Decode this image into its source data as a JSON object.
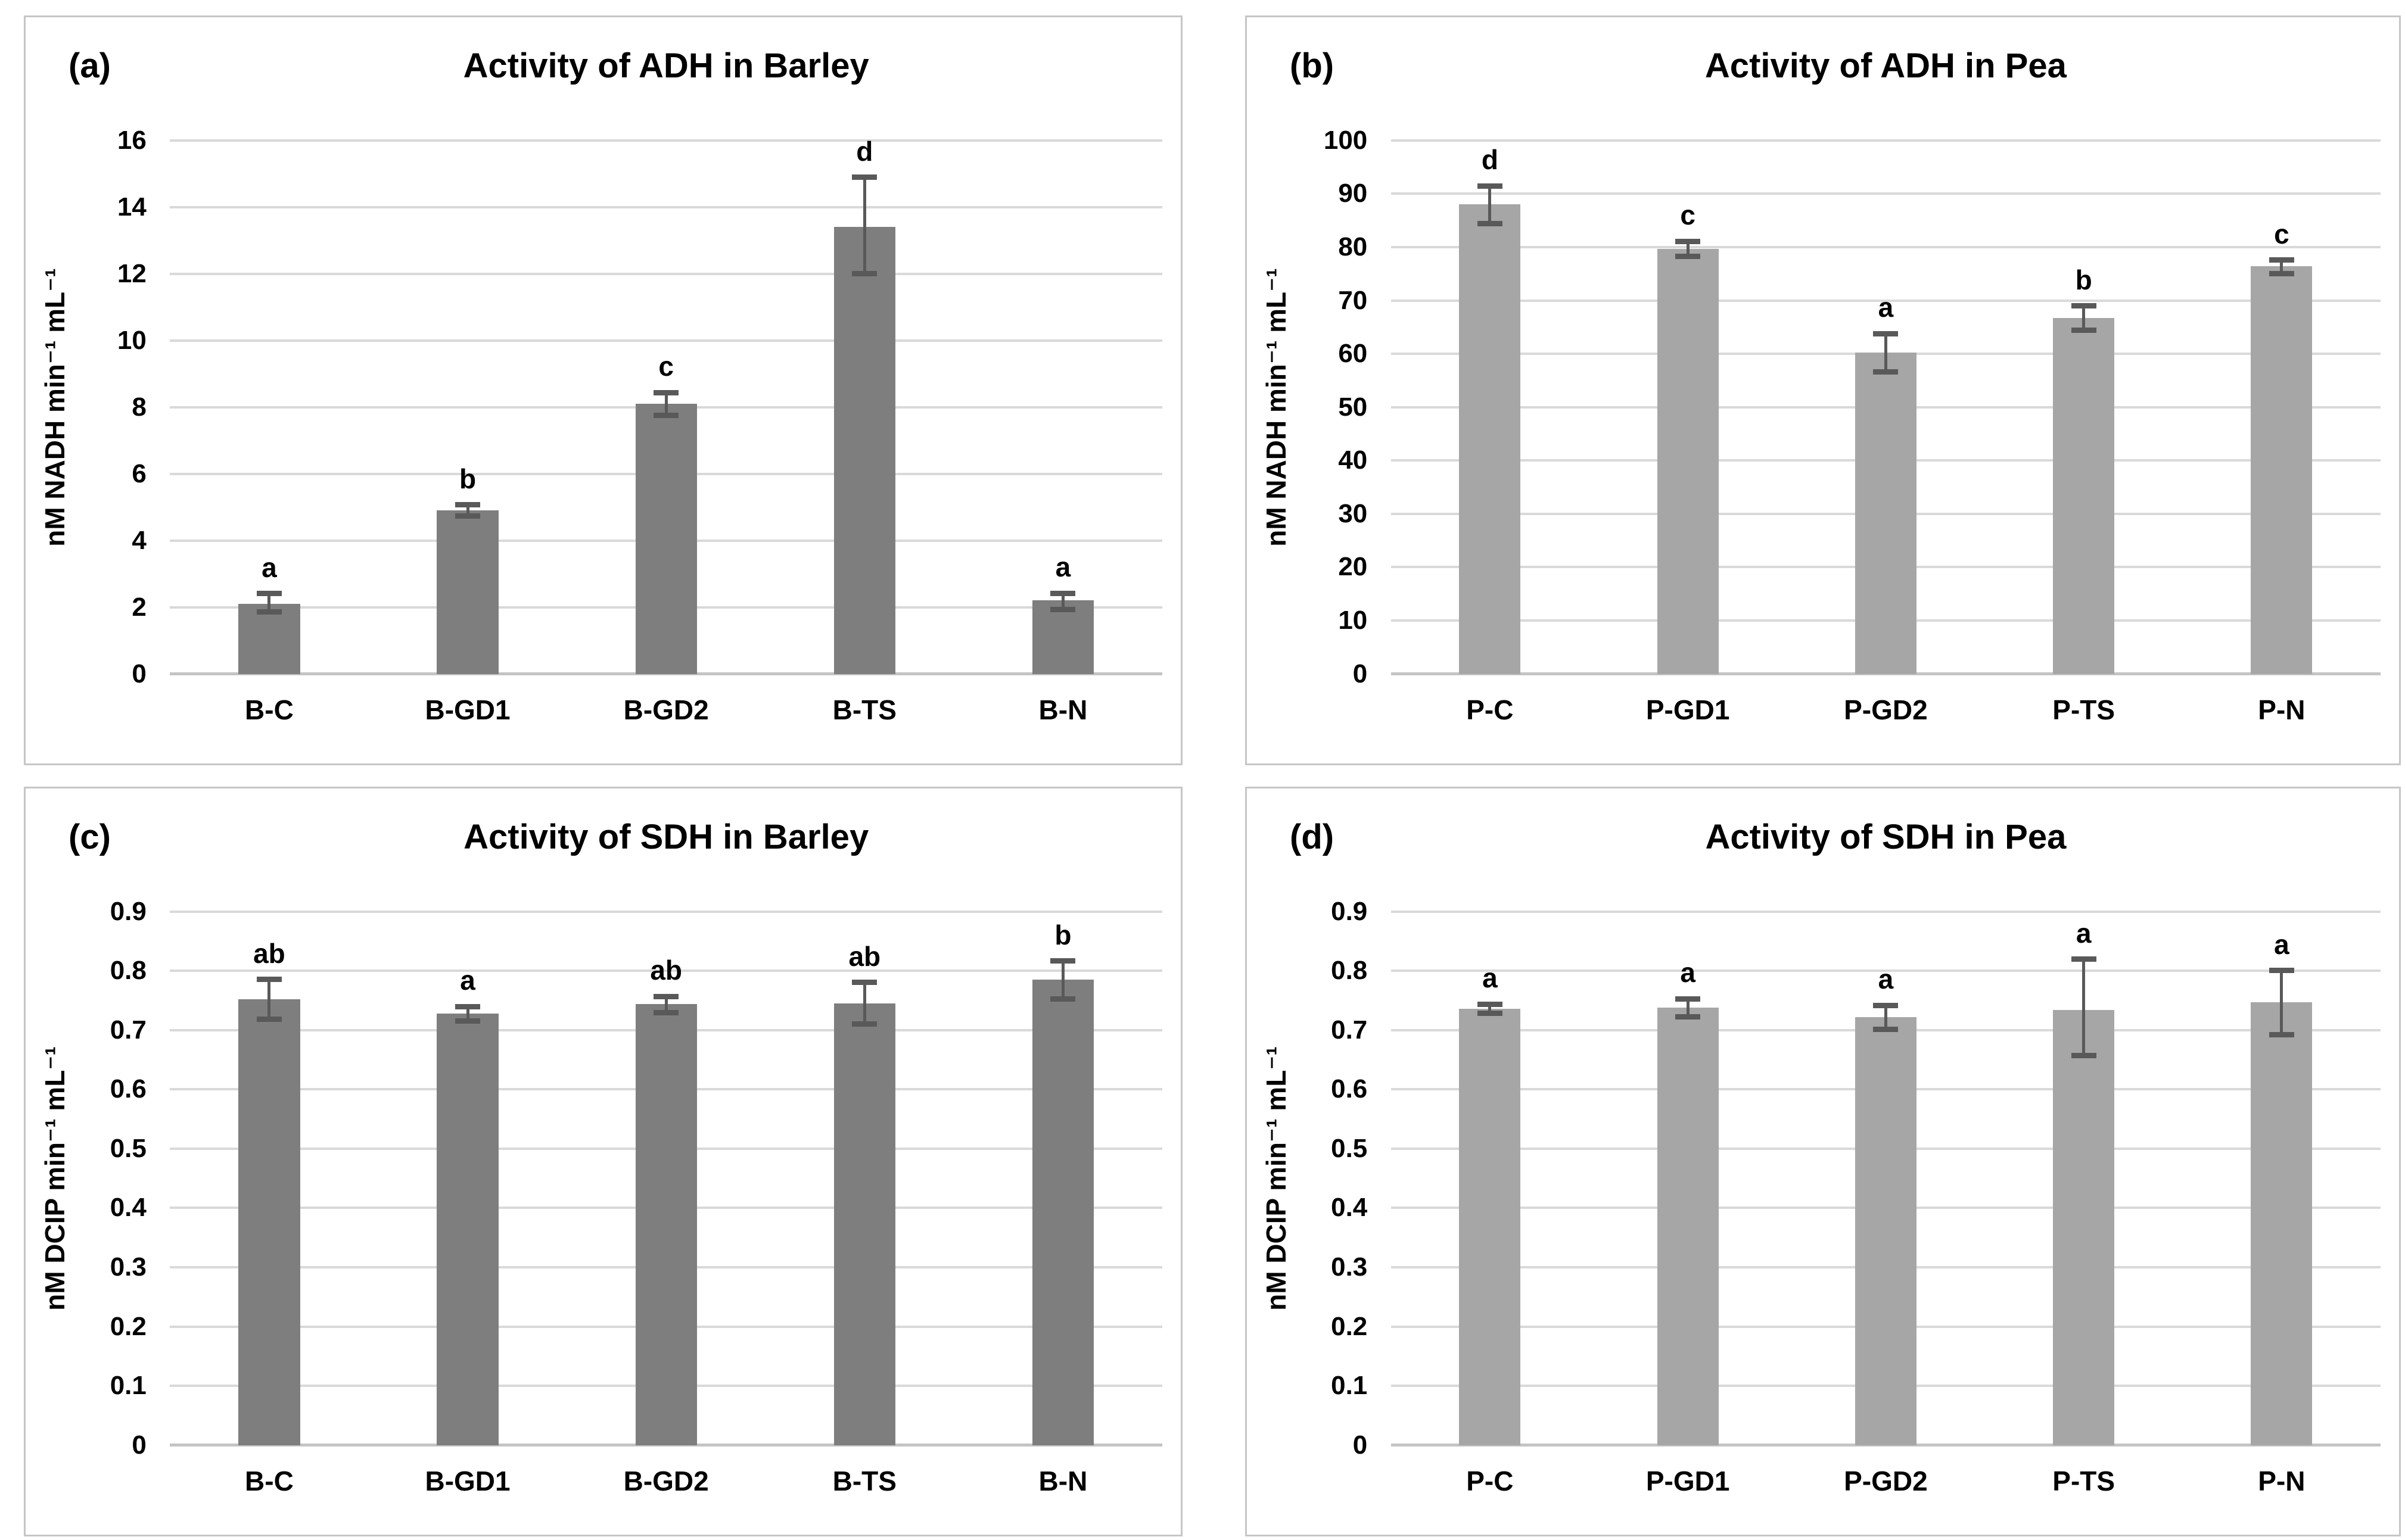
{
  "figure": {
    "background": "#ffffff",
    "panel_border_color": "#c6c6c6"
  },
  "colors": {
    "barley_bar": "#7e7e7e",
    "pea_bar": "#a6a6a6",
    "error_bar": "#595959",
    "gridline": "#d9d9d9",
    "axis_line": "#c4c4c4",
    "text": "#000000"
  },
  "chart_data": [
    {
      "type": "bar",
      "label": "(a)",
      "title": "Activity of ADH in Barley",
      "ylabel": "nM NADH min⁻¹ mL⁻¹",
      "xlabel": "",
      "categories": [
        "B-C",
        "B-GD1",
        "B-GD2",
        "B-TS",
        "B-N"
      ],
      "values": [
        2.1,
        4.9,
        8.1,
        13.4,
        2.2
      ],
      "error_low": [
        1.85,
        4.72,
        7.75,
        12.0,
        1.93
      ],
      "error_high": [
        2.42,
        5.08,
        8.45,
        14.9,
        2.43
      ],
      "letters": [
        "a",
        "b",
        "c",
        "d",
        "a"
      ],
      "ylim": [
        0,
        16
      ],
      "ystep": 2,
      "tick_decimals": 0,
      "bar_color": "#7e7e7e",
      "grid": true,
      "legend": "none"
    },
    {
      "type": "bar",
      "label": "(b)",
      "title": "Activity of ADH in Pea",
      "ylabel": "nM NADH min⁻¹ mL⁻¹",
      "xlabel": "",
      "categories": [
        "P-C",
        "P-GD1",
        "P-GD2",
        "P-TS",
        "P-N"
      ],
      "values": [
        88,
        79.7,
        60.2,
        66.7,
        76.4
      ],
      "error_low": [
        84.3,
        78.2,
        56.5,
        64.4,
        75.0
      ],
      "error_high": [
        91.5,
        81.1,
        63.8,
        69.0,
        77.6
      ],
      "letters": [
        "d",
        "c",
        "a",
        "b",
        "c"
      ],
      "ylim": [
        0,
        100
      ],
      "ystep": 10,
      "tick_decimals": 0,
      "bar_color": "#a6a6a6",
      "grid": true,
      "legend": "none"
    },
    {
      "type": "bar",
      "label": "(c)",
      "title": "Activity of SDH in Barley",
      "ylabel": "nM DCIP min⁻¹ mL⁻¹",
      "xlabel": "",
      "categories": [
        "B-C",
        "B-GD1",
        "B-GD2",
        "B-TS",
        "B-N"
      ],
      "values": [
        0.752,
        0.728,
        0.744,
        0.745,
        0.785
      ],
      "error_low": [
        0.718,
        0.715,
        0.729,
        0.71,
        0.752
      ],
      "error_high": [
        0.786,
        0.74,
        0.757,
        0.781,
        0.817
      ],
      "letters": [
        "ab",
        "a",
        "ab",
        "ab",
        "b"
      ],
      "ylim": [
        0,
        0.9
      ],
      "ystep": 0.1,
      "tick_decimals": 1,
      "bar_color": "#7e7e7e",
      "grid": true,
      "legend": "none"
    },
    {
      "type": "bar",
      "label": "(d)",
      "title": "Activity of SDH in Pea",
      "ylabel": "nM DCIP min⁻¹ mL⁻¹",
      "xlabel": "",
      "categories": [
        "P-C",
        "P-GD1",
        "P-GD2",
        "P-TS",
        "P-N"
      ],
      "values": [
        0.736,
        0.738,
        0.722,
        0.734,
        0.747
      ],
      "error_low": [
        0.728,
        0.722,
        0.701,
        0.657,
        0.692
      ],
      "error_high": [
        0.744,
        0.753,
        0.742,
        0.82,
        0.801
      ],
      "letters": [
        "a",
        "a",
        "a",
        "a",
        "a"
      ],
      "ylim": [
        0,
        0.9
      ],
      "ystep": 0.1,
      "tick_decimals": 1,
      "bar_color": "#a6a6a6",
      "grid": true,
      "legend": "none"
    }
  ]
}
